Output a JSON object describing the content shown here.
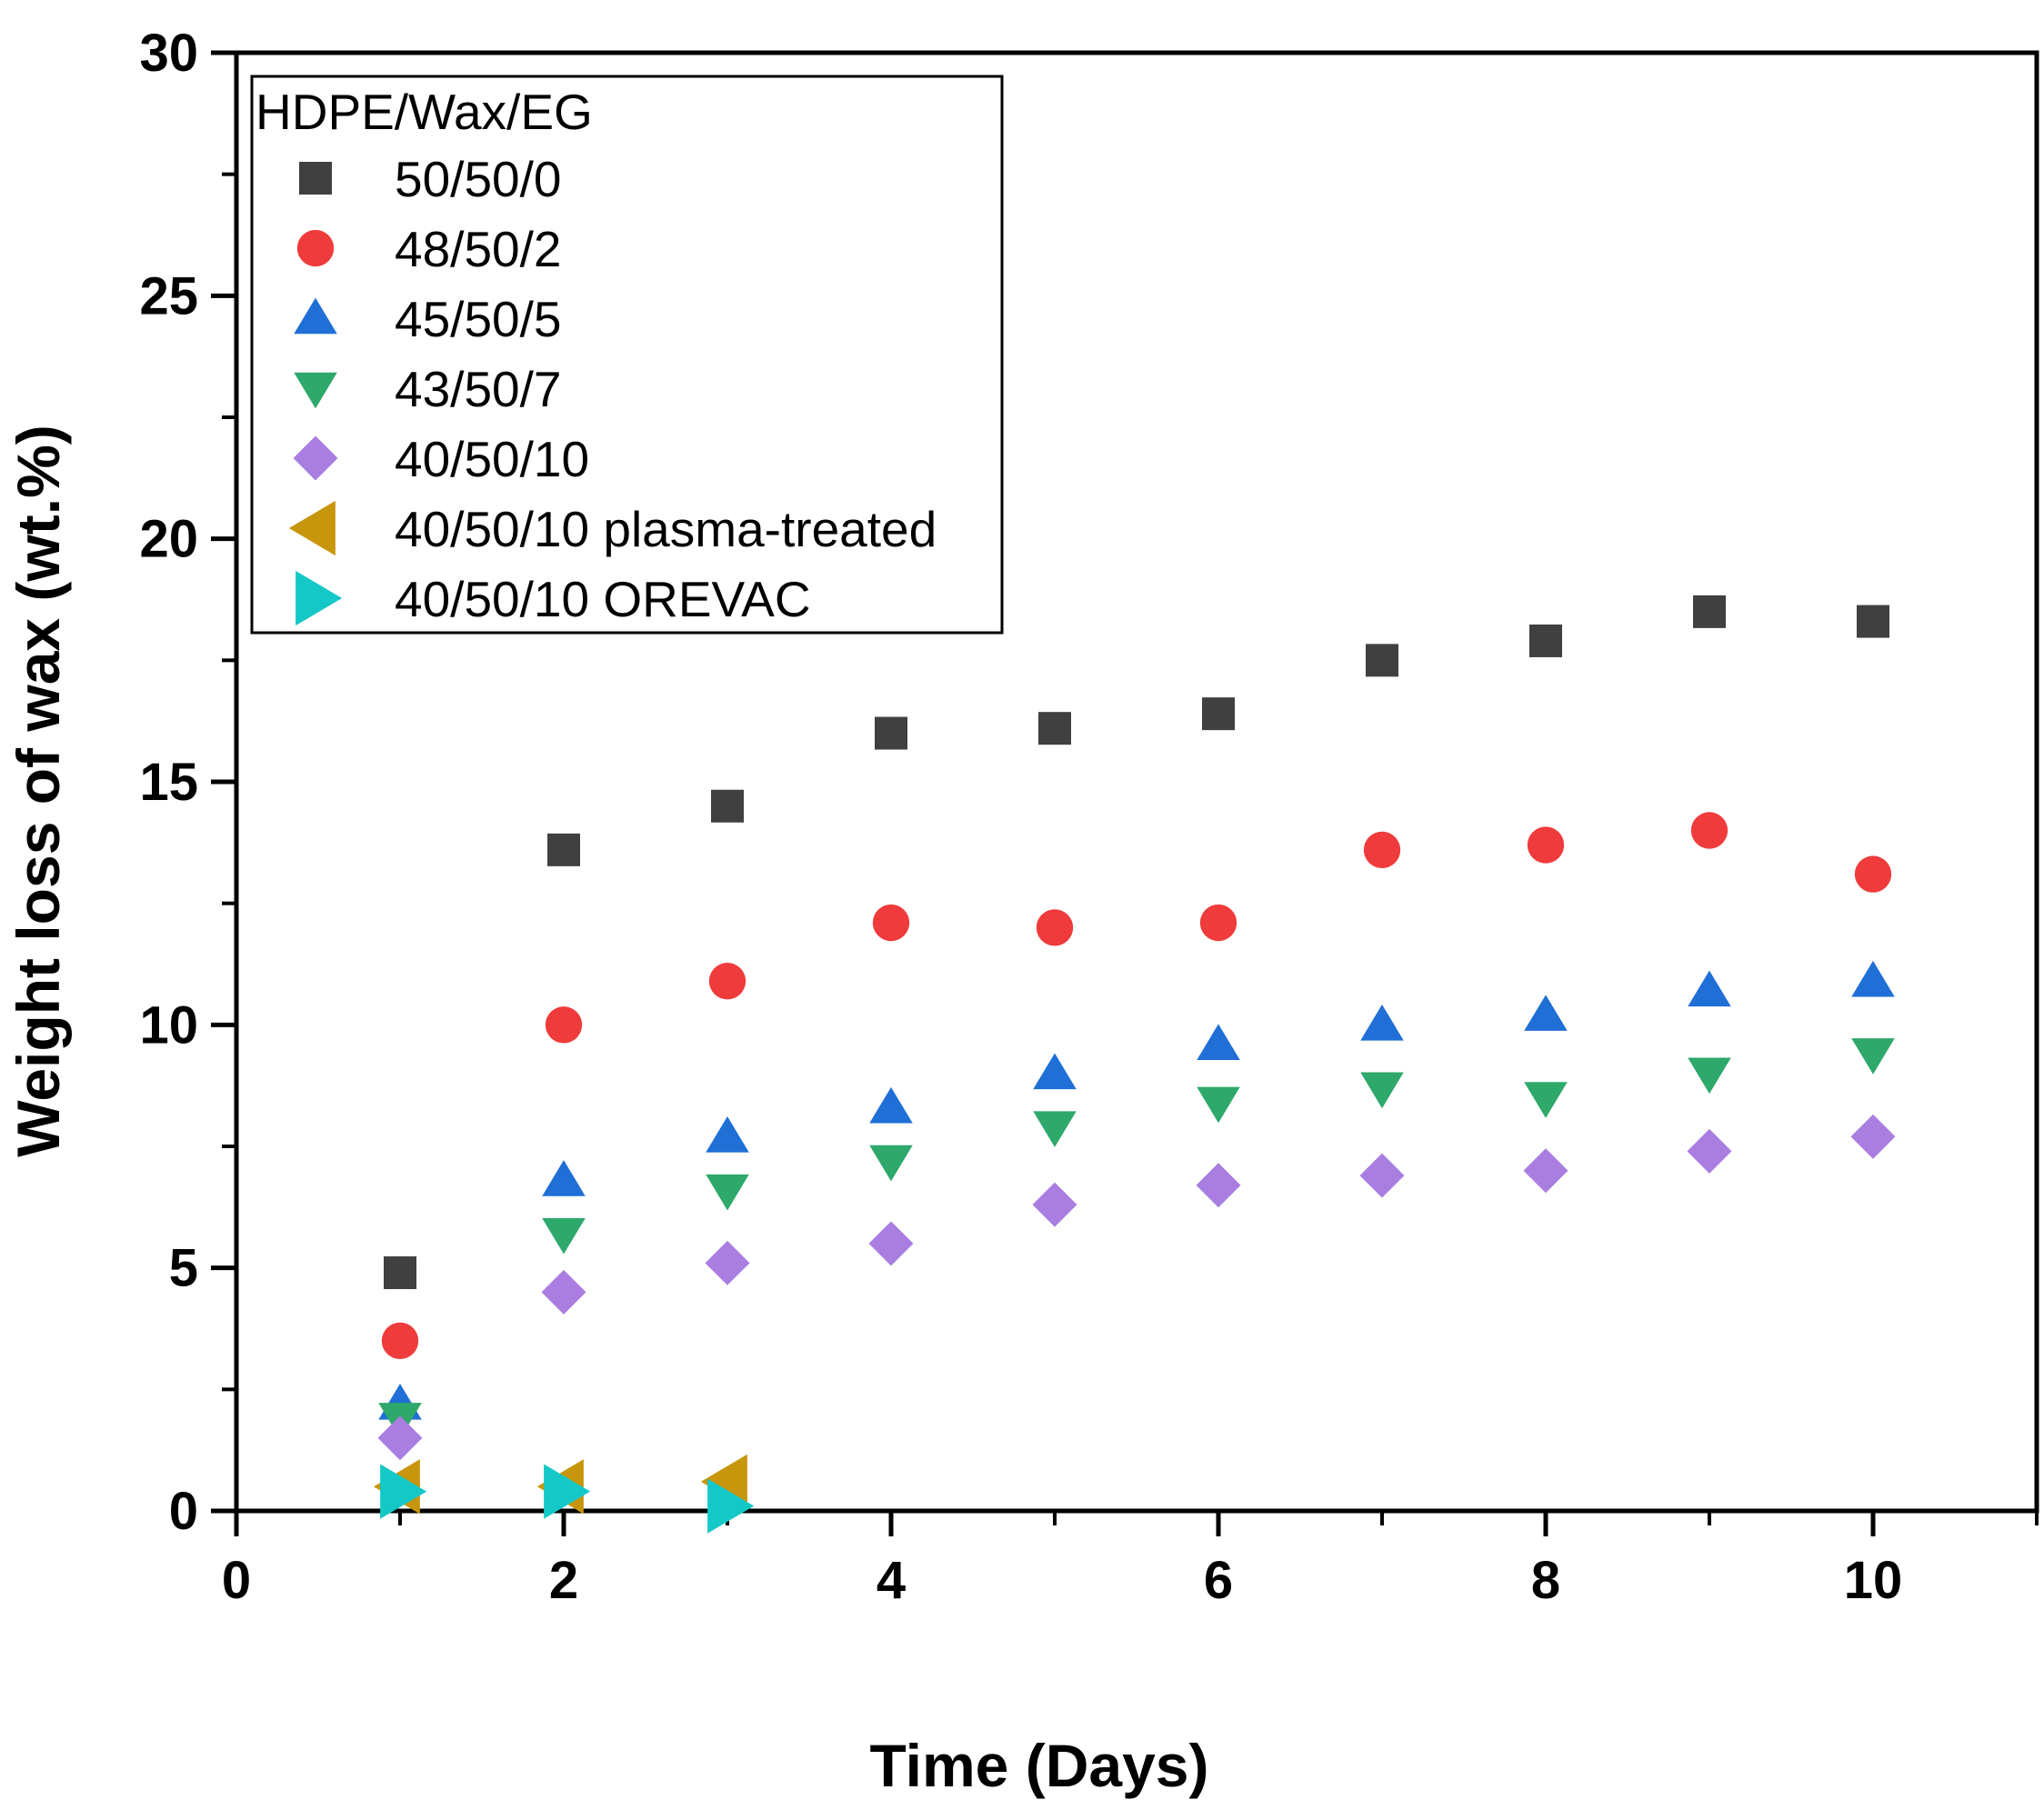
{
  "chart_data": {
    "type": "scatter",
    "title": "",
    "xlabel": "Time (Days)",
    "ylabel": "Weight loss of wax (wt.%)",
    "xlim": [
      0,
      11
    ],
    "ylim": [
      0,
      30
    ],
    "xticks": [
      0,
      2,
      4,
      6,
      8,
      10
    ],
    "yticks": [
      0,
      5,
      10,
      15,
      20,
      25,
      30
    ],
    "grid": false,
    "legend": {
      "title": "HDPE/Wax/EG",
      "position": "top-left"
    },
    "series": [
      {
        "name": "50/50/0",
        "marker": "square",
        "color": "#404040",
        "x": [
          1,
          2,
          3,
          4,
          5,
          6,
          7,
          8,
          9,
          10
        ],
        "y": [
          4.9,
          13.6,
          14.5,
          16.0,
          16.1,
          16.4,
          17.5,
          17.9,
          18.5,
          18.3
        ]
      },
      {
        "name": "48/50/2",
        "marker": "circle",
        "color": "#ef3b3b",
        "x": [
          1,
          2,
          3,
          4,
          5,
          6,
          7,
          8,
          9,
          10
        ],
        "y": [
          3.5,
          10.0,
          10.9,
          12.1,
          12.0,
          12.1,
          13.6,
          13.7,
          14.0,
          13.1
        ]
      },
      {
        "name": "45/50/5",
        "marker": "triangle-up",
        "color": "#1f6fd6",
        "x": [
          1,
          2,
          3,
          4,
          5,
          6,
          7,
          8,
          9,
          10
        ],
        "y": [
          2.2,
          6.8,
          7.7,
          8.3,
          9.0,
          9.6,
          10.0,
          10.2,
          10.7,
          10.9
        ]
      },
      {
        "name": "43/50/7",
        "marker": "triangle-down",
        "color": "#2ea86b",
        "x": [
          1,
          2,
          3,
          4,
          5,
          6,
          7,
          8,
          9,
          10
        ],
        "y": [
          1.9,
          5.7,
          6.6,
          7.2,
          7.9,
          8.4,
          8.7,
          8.5,
          9.0,
          9.4
        ]
      },
      {
        "name": "40/50/10",
        "marker": "diamond",
        "color": "#a97ee0",
        "x": [
          1,
          2,
          3,
          4,
          5,
          6,
          7,
          8,
          9,
          10
        ],
        "y": [
          1.5,
          4.5,
          5.1,
          5.5,
          6.3,
          6.7,
          6.9,
          7.0,
          7.4,
          7.7
        ]
      },
      {
        "name": "40/50/10 plasma-treated",
        "marker": "triangle-left",
        "color": "#c8960c",
        "x": [
          1,
          2,
          3
        ],
        "y": [
          0.5,
          0.5,
          0.6
        ]
      },
      {
        "name": "40/50/10 OREVAC",
        "marker": "triangle-right",
        "color": "#14c8c8",
        "x": [
          1,
          2,
          3
        ],
        "y": [
          0.4,
          0.4,
          0.1
        ]
      }
    ]
  }
}
